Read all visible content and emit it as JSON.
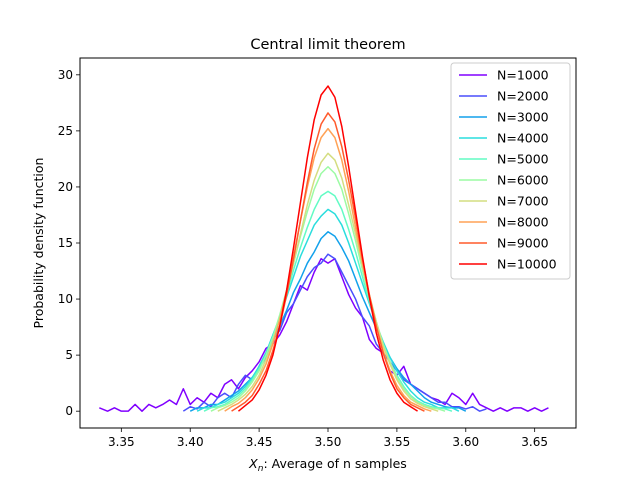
{
  "chart_data": {
    "type": "line",
    "title": "Central limit theorem",
    "xlabel_prefix": "X",
    "xlabel_sub": "n",
    "xlabel_rest": ": Average of n samples",
    "ylabel": "Probability density function",
    "xlim": [
      3.32,
      3.68
    ],
    "ylim": [
      -1.5,
      31.5
    ],
    "xticks": [
      3.35,
      3.4,
      3.45,
      3.5,
      3.55,
      3.6,
      3.65
    ],
    "xtick_labels": [
      "3.35",
      "3.40",
      "3.45",
      "3.50",
      "3.55",
      "3.60",
      "3.65"
    ],
    "yticks": [
      0,
      5,
      10,
      15,
      20,
      25,
      30
    ],
    "ytick_labels": [
      "0",
      "5",
      "10",
      "15",
      "20",
      "25",
      "30"
    ],
    "grid": false,
    "legend_position": "top-right",
    "series": [
      {
        "name": "N=1000",
        "color": "#8000ff",
        "x": [
          3.334,
          3.34,
          3.345,
          3.35,
          3.355,
          3.36,
          3.365,
          3.37,
          3.375,
          3.38,
          3.385,
          3.39,
          3.395,
          3.4,
          3.405,
          3.41,
          3.415,
          3.42,
          3.425,
          3.43,
          3.435,
          3.44,
          3.445,
          3.45,
          3.455,
          3.46,
          3.465,
          3.47,
          3.475,
          3.48,
          3.485,
          3.49,
          3.495,
          3.5,
          3.505,
          3.51,
          3.515,
          3.52,
          3.525,
          3.53,
          3.535,
          3.54,
          3.545,
          3.55,
          3.555,
          3.56,
          3.565,
          3.57,
          3.575,
          3.58,
          3.585,
          3.59,
          3.595,
          3.6,
          3.605,
          3.61,
          3.615,
          3.62,
          3.625,
          3.63,
          3.635,
          3.64,
          3.645,
          3.65,
          3.655,
          3.66
        ],
        "y": [
          0.3,
          0,
          0.3,
          0,
          0,
          0.6,
          0,
          0.6,
          0.3,
          0.6,
          1.0,
          0.6,
          2.0,
          0.6,
          1.2,
          0.8,
          1.6,
          1.2,
          2.4,
          2.8,
          2.0,
          3.0,
          3.6,
          4.4,
          5.6,
          6.0,
          6.8,
          8.0,
          9.6,
          11.2,
          10.8,
          12.4,
          13.6,
          13.2,
          13.6,
          12.0,
          10.4,
          9.2,
          8.4,
          6.4,
          5.6,
          5.2,
          3.6,
          3.2,
          4.0,
          2.4,
          2.0,
          1.6,
          1.2,
          1.0,
          0.6,
          1.6,
          1.2,
          0.6,
          1.6,
          0.6,
          0.3,
          0,
          0.3,
          0,
          0.3,
          0.3,
          0,
          0.3,
          0,
          0.3
        ]
      },
      {
        "name": "N=2000",
        "color": "#4a4ffc",
        "x": [
          3.395,
          3.4,
          3.405,
          3.41,
          3.415,
          3.42,
          3.425,
          3.43,
          3.435,
          3.44,
          3.445,
          3.45,
          3.455,
          3.46,
          3.465,
          3.47,
          3.475,
          3.48,
          3.485,
          3.49,
          3.495,
          3.5,
          3.505,
          3.51,
          3.515,
          3.52,
          3.525,
          3.53,
          3.535,
          3.54,
          3.545,
          3.55,
          3.555,
          3.56,
          3.565,
          3.57,
          3.575,
          3.58,
          3.585,
          3.59,
          3.595,
          3.6,
          3.605,
          3.61,
          3.615
        ],
        "y": [
          0,
          0.4,
          0.2,
          0.8,
          0.4,
          1.2,
          1.6,
          1.2,
          2.4,
          3.2,
          2.8,
          4.0,
          5.2,
          6.4,
          7.2,
          8.8,
          9.6,
          10.8,
          12.0,
          12.8,
          13.2,
          14.0,
          13.6,
          12.4,
          11.2,
          10.0,
          8.4,
          7.6,
          6.0,
          5.2,
          4.4,
          3.6,
          2.8,
          2.4,
          2.0,
          1.6,
          1.2,
          0.8,
          0.8,
          0.4,
          0.4,
          0.2,
          0.4,
          0,
          0.2
        ]
      },
      {
        "name": "N=3000",
        "color": "#12a1eb",
        "x": [
          3.4,
          3.405,
          3.41,
          3.415,
          3.42,
          3.425,
          3.43,
          3.435,
          3.44,
          3.445,
          3.45,
          3.455,
          3.46,
          3.465,
          3.47,
          3.475,
          3.48,
          3.485,
          3.49,
          3.495,
          3.5,
          3.505,
          3.51,
          3.515,
          3.52,
          3.525,
          3.53,
          3.535,
          3.54,
          3.545,
          3.55,
          3.555,
          3.56,
          3.565,
          3.57,
          3.575,
          3.58,
          3.585,
          3.59,
          3.595,
          3.6
        ],
        "y": [
          0,
          0.3,
          0.3,
          0.6,
          0.6,
          1.0,
          1.4,
          1.8,
          2.4,
          3.0,
          3.8,
          4.8,
          6.2,
          7.6,
          9.0,
          10.6,
          11.8,
          13.2,
          14.2,
          15.4,
          16.0,
          15.6,
          14.6,
          13.4,
          11.8,
          10.2,
          8.8,
          7.4,
          6.0,
          4.8,
          3.8,
          3.0,
          2.4,
          1.8,
          1.2,
          0.8,
          0.6,
          0.4,
          0.3,
          0.3,
          0
        ]
      },
      {
        "name": "N=4000",
        "color": "#2adddd",
        "x": [
          3.405,
          3.41,
          3.415,
          3.42,
          3.425,
          3.43,
          3.435,
          3.44,
          3.445,
          3.45,
          3.455,
          3.46,
          3.465,
          3.47,
          3.475,
          3.48,
          3.485,
          3.49,
          3.495,
          3.5,
          3.505,
          3.51,
          3.515,
          3.52,
          3.525,
          3.53,
          3.535,
          3.54,
          3.545,
          3.55,
          3.555,
          3.56,
          3.565,
          3.57,
          3.575,
          3.58,
          3.585,
          3.59,
          3.595
        ],
        "y": [
          0,
          0.3,
          0.3,
          0.6,
          0.8,
          1.2,
          1.6,
          2.2,
          3.0,
          4.0,
          5.2,
          6.8,
          8.4,
          10.2,
          12.0,
          13.8,
          15.2,
          16.6,
          17.4,
          18.0,
          17.6,
          16.6,
          15.0,
          13.2,
          11.4,
          9.6,
          7.8,
          6.2,
          4.8,
          3.6,
          2.6,
          1.8,
          1.2,
          0.8,
          0.6,
          0.3,
          0.3,
          0.3,
          0
        ]
      },
      {
        "name": "N=5000",
        "color": "#62fbc4",
        "x": [
          3.41,
          3.415,
          3.42,
          3.425,
          3.43,
          3.435,
          3.44,
          3.445,
          3.45,
          3.455,
          3.46,
          3.465,
          3.47,
          3.475,
          3.48,
          3.485,
          3.49,
          3.495,
          3.5,
          3.505,
          3.51,
          3.515,
          3.52,
          3.525,
          3.53,
          3.535,
          3.54,
          3.545,
          3.55,
          3.555,
          3.56,
          3.565,
          3.57,
          3.575,
          3.58,
          3.585,
          3.59
        ],
        "y": [
          0,
          0.3,
          0.4,
          0.6,
          1.0,
          1.4,
          2.0,
          2.8,
          3.8,
          5.0,
          6.6,
          8.4,
          10.4,
          12.6,
          14.6,
          16.4,
          18.0,
          19.2,
          19.6,
          19.2,
          18.0,
          16.2,
          14.2,
          12.0,
          9.8,
          7.8,
          6.0,
          4.4,
          3.2,
          2.2,
          1.4,
          0.9,
          0.6,
          0.4,
          0.3,
          0.2,
          0
        ]
      },
      {
        "name": "N=6000",
        "color": "#9cfba4",
        "x": [
          3.415,
          3.42,
          3.425,
          3.43,
          3.435,
          3.44,
          3.445,
          3.45,
          3.455,
          3.46,
          3.465,
          3.47,
          3.475,
          3.48,
          3.485,
          3.49,
          3.495,
          3.5,
          3.505,
          3.51,
          3.515,
          3.52,
          3.525,
          3.53,
          3.535,
          3.54,
          3.545,
          3.55,
          3.555,
          3.56,
          3.565,
          3.57,
          3.575,
          3.58,
          3.585
        ],
        "y": [
          0,
          0.3,
          0.5,
          0.8,
          1.2,
          1.8,
          2.6,
          3.6,
          5.0,
          6.6,
          8.6,
          10.8,
          13.2,
          15.6,
          17.8,
          19.8,
          21.2,
          21.8,
          21.2,
          19.8,
          17.6,
          15.2,
          12.6,
          10.2,
          8.0,
          6.0,
          4.4,
          3.0,
          2.0,
          1.3,
          0.8,
          0.5,
          0.3,
          0.2,
          0
        ]
      },
      {
        "name": "N=7000",
        "color": "#d4dd80",
        "x": [
          3.42,
          3.425,
          3.43,
          3.435,
          3.44,
          3.445,
          3.45,
          3.455,
          3.46,
          3.465,
          3.47,
          3.475,
          3.48,
          3.485,
          3.49,
          3.495,
          3.5,
          3.505,
          3.51,
          3.515,
          3.52,
          3.525,
          3.53,
          3.535,
          3.54,
          3.545,
          3.55,
          3.555,
          3.56,
          3.565,
          3.57,
          3.575,
          3.58
        ],
        "y": [
          0,
          0.3,
          0.6,
          1.0,
          1.5,
          2.2,
          3.2,
          4.6,
          6.2,
          8.2,
          10.6,
          13.2,
          15.8,
          18.4,
          20.6,
          22.2,
          23.0,
          22.4,
          20.8,
          18.4,
          15.8,
          13.0,
          10.4,
          8.0,
          5.8,
          4.2,
          2.8,
          1.8,
          1.1,
          0.7,
          0.4,
          0.2,
          0
        ]
      },
      {
        "name": "N=8000",
        "color": "#ffa256",
        "x": [
          3.425,
          3.43,
          3.435,
          3.44,
          3.445,
          3.45,
          3.455,
          3.46,
          3.465,
          3.47,
          3.475,
          3.48,
          3.485,
          3.49,
          3.495,
          3.5,
          3.505,
          3.51,
          3.515,
          3.52,
          3.525,
          3.53,
          3.535,
          3.54,
          3.545,
          3.55,
          3.555,
          3.56,
          3.565,
          3.57,
          3.575
        ],
        "y": [
          0,
          0.4,
          0.7,
          1.2,
          1.9,
          2.9,
          4.2,
          6.0,
          8.2,
          10.8,
          13.8,
          17.0,
          20.0,
          22.6,
          24.4,
          25.2,
          24.4,
          22.4,
          19.6,
          16.4,
          13.2,
          10.2,
          7.6,
          5.4,
          3.6,
          2.3,
          1.4,
          0.8,
          0.5,
          0.2,
          0
        ]
      },
      {
        "name": "N=9000",
        "color": "#ff5a2c",
        "x": [
          3.43,
          3.435,
          3.44,
          3.445,
          3.45,
          3.455,
          3.46,
          3.465,
          3.47,
          3.475,
          3.48,
          3.485,
          3.49,
          3.495,
          3.5,
          3.505,
          3.51,
          3.515,
          3.52,
          3.525,
          3.53,
          3.535,
          3.54,
          3.545,
          3.55,
          3.555,
          3.56,
          3.565,
          3.57
        ],
        "y": [
          0,
          0.4,
          0.8,
          1.4,
          2.4,
          3.6,
          5.4,
          7.6,
          10.4,
          13.6,
          17.0,
          20.4,
          23.4,
          25.6,
          26.6,
          25.8,
          23.6,
          20.6,
          17.2,
          13.6,
          10.4,
          7.6,
          5.2,
          3.4,
          2.0,
          1.2,
          0.6,
          0.3,
          0
        ]
      },
      {
        "name": "N=10000",
        "color": "#ff0000",
        "x": [
          3.435,
          3.44,
          3.445,
          3.45,
          3.455,
          3.46,
          3.465,
          3.47,
          3.475,
          3.48,
          3.485,
          3.49,
          3.495,
          3.5,
          3.505,
          3.51,
          3.515,
          3.52,
          3.525,
          3.53,
          3.535,
          3.54,
          3.545,
          3.55,
          3.555,
          3.56,
          3.565
        ],
        "y": [
          0,
          0.5,
          1.0,
          1.9,
          3.2,
          5.0,
          7.6,
          10.8,
          14.6,
          18.6,
          22.6,
          26.0,
          28.2,
          29.0,
          28.0,
          25.4,
          21.8,
          17.8,
          13.8,
          10.2,
          7.0,
          4.6,
          2.8,
          1.6,
          0.8,
          0.4,
          0
        ]
      }
    ]
  }
}
